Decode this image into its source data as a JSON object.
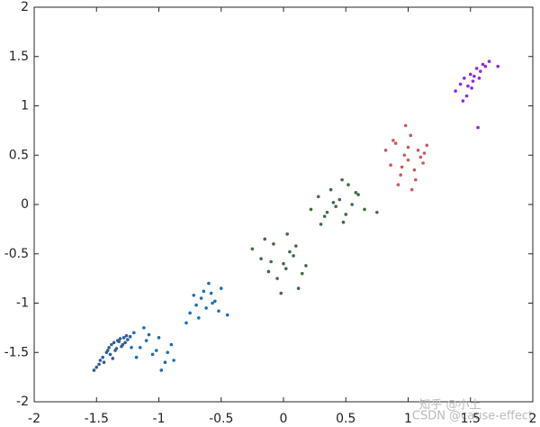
{
  "chart_data": {
    "type": "scatter",
    "xlim": [
      -2,
      2
    ],
    "ylim": [
      -2,
      2
    ],
    "xticks": [
      -2,
      -1.5,
      -1,
      -0.5,
      0,
      0.5,
      1,
      1.5,
      2
    ],
    "yticks": [
      -2,
      -1.5,
      -1,
      -0.5,
      0,
      0.5,
      1,
      1.5,
      2
    ],
    "annotations": [
      "知乎 @小土",
      "CSDN @cause-effect"
    ],
    "series": [
      {
        "color": "#2f5f93",
        "x": [
          -1.52,
          -1.48,
          -1.45,
          -1.42,
          -1.4,
          -1.38,
          -1.36,
          -1.35,
          -1.33,
          -1.31,
          -1.3,
          -1.28,
          -1.27,
          -1.25,
          -1.23,
          -1.44,
          -1.39,
          -1.34,
          -1.29,
          -1.47,
          -1.41,
          -1.37,
          -1.32,
          -1.26,
          -1.5
        ],
        "values": [
          -1.68,
          -1.62,
          -1.55,
          -1.5,
          -1.45,
          -1.42,
          -1.4,
          -1.48,
          -1.38,
          -1.36,
          -1.44,
          -1.35,
          -1.4,
          -1.37,
          -1.34,
          -1.6,
          -1.52,
          -1.46,
          -1.42,
          -1.58,
          -1.48,
          -1.56,
          -1.39,
          -1.33,
          -1.65
        ]
      },
      {
        "color": "#1a6fb5",
        "x": [
          -1.2,
          -1.15,
          -1.1,
          -1.05,
          -1.0,
          -0.95,
          -0.9,
          -1.12,
          -1.02,
          -0.98,
          -1.18,
          -1.08,
          -0.93,
          -1.22,
          -0.88,
          -0.75,
          -0.7,
          -0.66,
          -0.62,
          -0.58,
          -0.55,
          -0.5,
          -0.68,
          -0.6,
          -0.72,
          -0.52,
          -0.64,
          -0.57,
          -0.45,
          -0.78
        ],
        "values": [
          -1.3,
          -1.45,
          -1.38,
          -1.52,
          -1.35,
          -1.6,
          -1.42,
          -1.25,
          -1.48,
          -1.68,
          -1.55,
          -1.32,
          -1.5,
          -1.45,
          -1.58,
          -1.1,
          -1.02,
          -0.95,
          -1.05,
          -0.9,
          -0.98,
          -0.85,
          -1.15,
          -0.8,
          -0.92,
          -1.08,
          -0.88,
          -1.0,
          -1.12,
          -1.2
        ]
      },
      {
        "color": "#3f6b47",
        "x": [
          -0.25,
          -0.18,
          -0.12,
          -0.08,
          -0.05,
          0.0,
          0.03,
          0.08,
          0.12,
          0.18,
          -0.15,
          -0.02,
          0.05,
          0.15,
          -0.1,
          0.02,
          0.1,
          0.22,
          0.28,
          0.33,
          0.38,
          0.42,
          0.45,
          0.48,
          0.52,
          0.55,
          0.6,
          0.35,
          0.4,
          0.5,
          0.58,
          0.65,
          0.75,
          0.3,
          0.47
        ],
        "values": [
          -0.45,
          -0.55,
          -0.68,
          -0.4,
          -0.75,
          -0.6,
          -0.3,
          -0.52,
          -0.85,
          -0.62,
          -0.35,
          -0.9,
          -0.48,
          -0.7,
          -0.58,
          -0.65,
          -0.42,
          -0.05,
          0.08,
          -0.12,
          0.15,
          -0.02,
          0.05,
          -0.18,
          0.2,
          0.0,
          0.1,
          -0.08,
          0.02,
          -0.1,
          0.12,
          -0.05,
          -0.08,
          -0.2,
          0.25
        ]
      },
      {
        "color": "#cc5a5a",
        "x": [
          0.82,
          0.86,
          0.9,
          0.94,
          0.97,
          1.0,
          1.02,
          1.05,
          1.08,
          1.12,
          1.15,
          0.92,
          0.98,
          1.03,
          1.1,
          0.88,
          1.06,
          1.0,
          0.95,
          1.13
        ],
        "values": [
          0.55,
          0.4,
          0.62,
          0.3,
          0.5,
          0.45,
          0.7,
          0.35,
          0.55,
          0.42,
          0.6,
          0.2,
          0.8,
          0.15,
          0.48,
          0.65,
          0.25,
          0.58,
          0.38,
          0.52
        ]
      },
      {
        "color": "#8a2be2",
        "x": [
          1.38,
          1.42,
          1.45,
          1.48,
          1.5,
          1.52,
          1.55,
          1.58,
          1.6,
          1.62,
          1.65,
          1.47,
          1.53,
          1.57,
          1.72,
          1.44,
          1.56,
          1.51
        ],
        "values": [
          1.15,
          1.22,
          1.28,
          1.2,
          1.32,
          1.25,
          1.38,
          1.35,
          1.42,
          1.4,
          1.45,
          1.1,
          1.3,
          1.28,
          1.4,
          1.05,
          0.78,
          1.18
        ]
      }
    ]
  }
}
